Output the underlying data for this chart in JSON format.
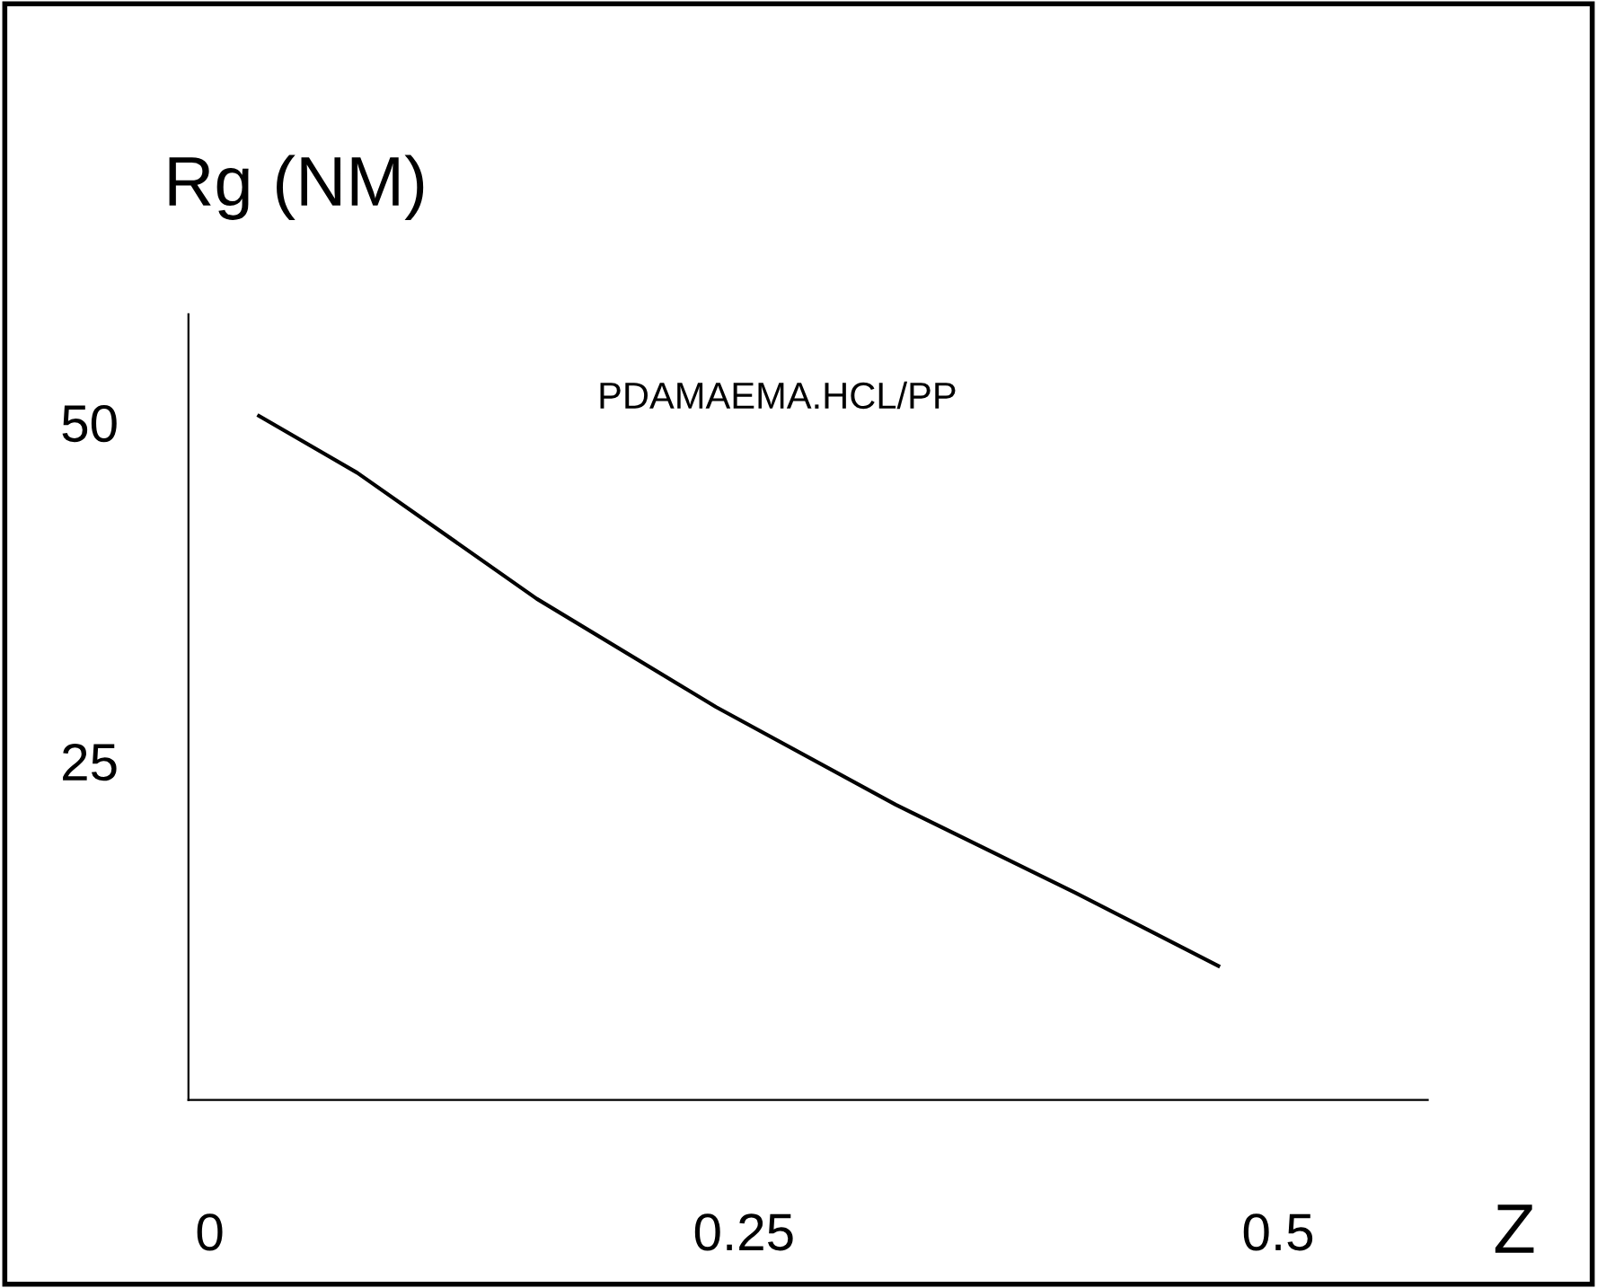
{
  "chart_data": {
    "type": "line",
    "xlabel": "Z",
    "ylabel": "Rg (NM)",
    "annotations": [
      "PDAMAEMA.HCL/PP"
    ],
    "series": [
      {
        "color": "#000000",
        "x": [
          0.023,
          0.069,
          0.153,
          0.237,
          0.321,
          0.405,
          0.472
        ],
        "values": [
          50.5,
          46.3,
          37.0,
          29.0,
          21.8,
          15.3,
          9.9
        ]
      }
    ],
    "xlim": [
      -0.01,
      0.57
    ],
    "xticks": [
      0,
      0.25,
      0.5
    ],
    "ylim": [
      0,
      58
    ],
    "yticks": [
      25,
      50
    ],
    "grid": false,
    "legend": false,
    "marker": "none",
    "line_style": "solid"
  }
}
